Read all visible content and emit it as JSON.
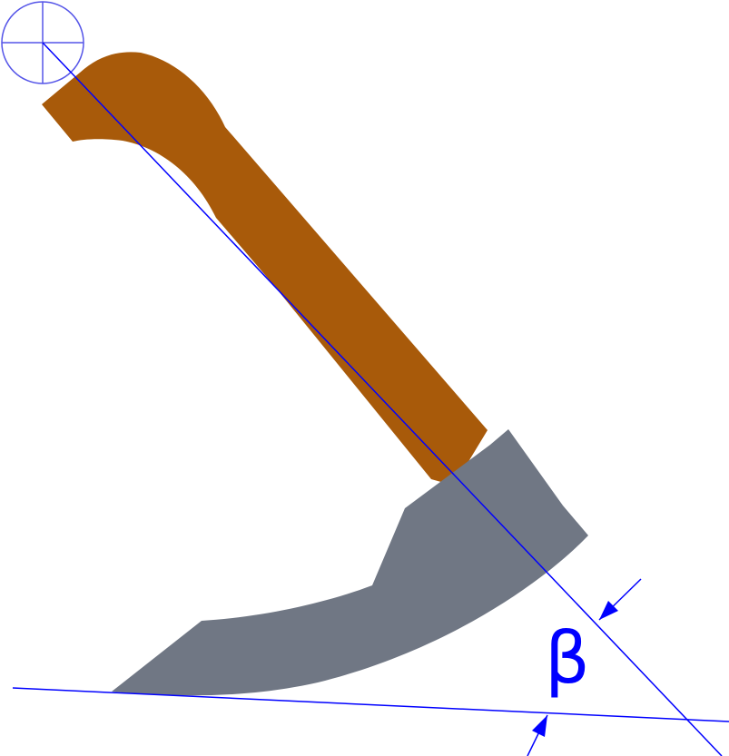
{
  "angle_label": "β",
  "colors": {
    "handle": "#A85A0A",
    "blade": "#707784",
    "construction_line": "#0000FF",
    "pivot_marker": "#5555E8",
    "background": "#FFFFFF"
  },
  "parts": {
    "handle": "handle",
    "blade": "blade",
    "pivot_marker": "pivot-marker",
    "ground_line": "ground-line",
    "axis_line": "axis-line"
  }
}
